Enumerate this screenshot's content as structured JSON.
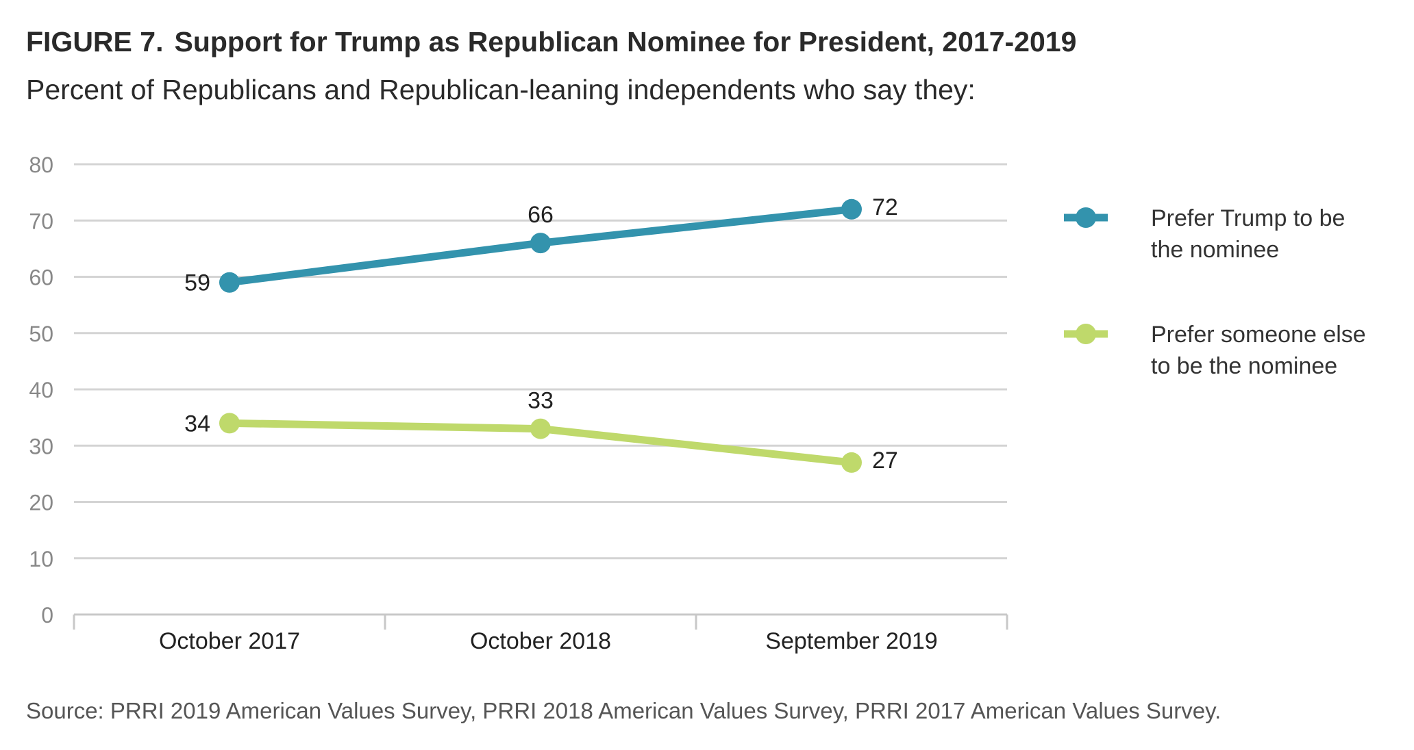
{
  "figure": {
    "label": "FIGURE 7.",
    "title": "Support for Trump as Republican Nominee for President, 2017-2019",
    "subtitle": "Percent of Republicans and Republican-leaning independents who say they:",
    "source": "Source: PRRI 2019 American Values Survey, PRRI 2018 American Values Survey, PRRI 2017 American Values Survey."
  },
  "chart_data": {
    "type": "line",
    "categories": [
      "October 2017",
      "October 2018",
      "September 2019"
    ],
    "ylim": [
      0,
      80
    ],
    "yticks": [
      0,
      10,
      20,
      30,
      40,
      50,
      60,
      70,
      80
    ],
    "grid": true,
    "legend_position": "right",
    "series": [
      {
        "name_lines": [
          "Prefer Trump to be",
          "the nominee"
        ],
        "name": "Prefer Trump to be the nominee",
        "values": [
          59,
          66,
          72
        ],
        "color": "#3393ad"
      },
      {
        "name_lines": [
          "Prefer someone else",
          "to be the nominee"
        ],
        "name": "Prefer someone else to be the nominee",
        "values": [
          34,
          33,
          27
        ],
        "color": "#bfd96b"
      }
    ]
  }
}
